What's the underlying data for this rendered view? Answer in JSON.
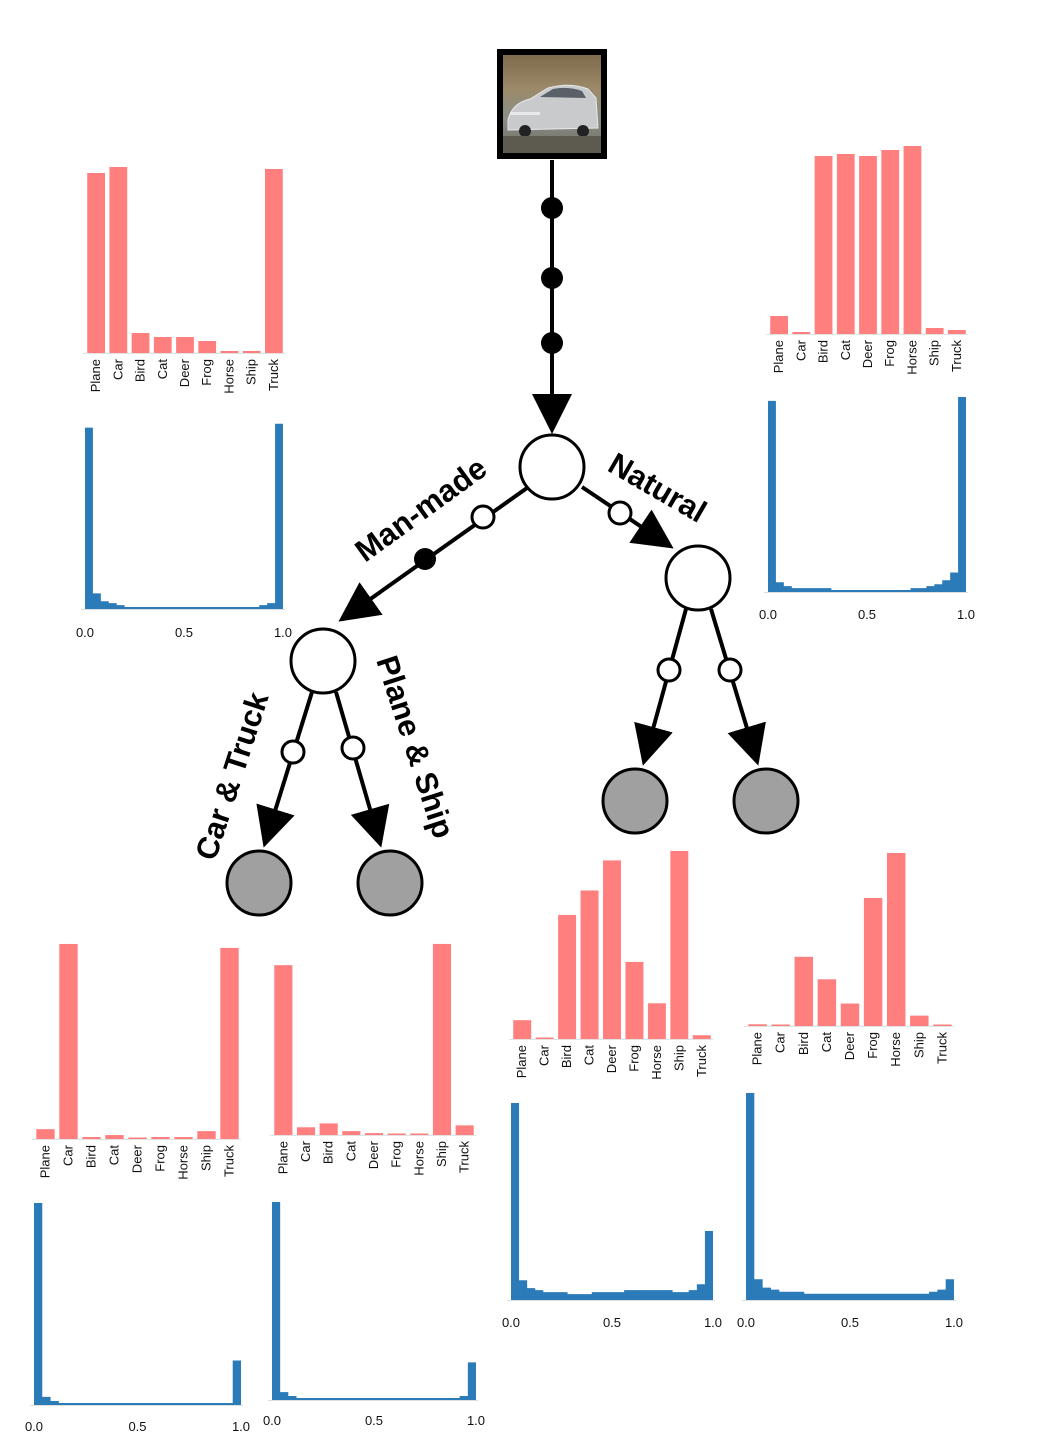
{
  "input_image": {
    "description_icon": "car-photo"
  },
  "branch_labels": {
    "left": "Man-made",
    "right": "Natural",
    "left_left": "Car & Truck",
    "left_right": "Plane & Ship"
  },
  "colors": {
    "class_bar": "#ff7f7f",
    "confidence_hist": "#2b7bb9",
    "leaf_node": "#a0a0a0",
    "internal_node": "#ffffff",
    "edge": "#000000"
  },
  "chart_data": [
    {
      "id": "top-left",
      "type": "bar",
      "categories": [
        "Plane",
        "Car",
        "Bird",
        "Cat",
        "Deer",
        "Frog",
        "Horse",
        "Ship",
        "Truck"
      ],
      "values": [
        0.9,
        0.93,
        0.1,
        0.08,
        0.08,
        0.06,
        0.01,
        0.01,
        0.92
      ],
      "hist": {
        "type": "histogram",
        "xticks": [
          "0.0",
          "0.5",
          "1.0"
        ],
        "values": [
          0.93,
          0.08,
          0.04,
          0.03,
          0.02,
          0.01,
          0.01,
          0.01,
          0.01,
          0.01,
          0.01,
          0.01,
          0.01,
          0.01,
          0.01,
          0.01,
          0.01,
          0.01,
          0.01,
          0.01,
          0.01,
          0.01,
          0.02,
          0.03,
          0.95
        ]
      }
    },
    {
      "id": "top-right",
      "type": "bar",
      "categories": [
        "Plane",
        "Car",
        "Bird",
        "Cat",
        "Deer",
        "Frog",
        "Horse",
        "Ship",
        "Truck"
      ],
      "values": [
        0.09,
        0.01,
        0.89,
        0.9,
        0.89,
        0.92,
        0.94,
        0.03,
        0.02
      ],
      "hist": {
        "type": "histogram",
        "xticks": [
          "0.0",
          "0.5",
          "1.0"
        ],
        "values": [
          0.98,
          0.05,
          0.03,
          0.02,
          0.02,
          0.02,
          0.02,
          0.02,
          0.01,
          0.01,
          0.01,
          0.01,
          0.01,
          0.01,
          0.01,
          0.01,
          0.01,
          0.01,
          0.02,
          0.02,
          0.03,
          0.04,
          0.06,
          0.1,
          1.0
        ]
      }
    },
    {
      "id": "car-truck",
      "type": "bar",
      "categories": [
        "Plane",
        "Car",
        "Bird",
        "Cat",
        "Deer",
        "Frog",
        "Horse",
        "Ship",
        "Truck"
      ],
      "values": [
        0.05,
        0.99,
        0.01,
        0.02,
        0.0,
        0.01,
        0.01,
        0.04,
        0.97
      ],
      "hist": {
        "type": "histogram",
        "xticks": [
          "0.0",
          "0.5",
          "1.0"
        ],
        "values": [
          1.0,
          0.04,
          0.02,
          0.01,
          0.01,
          0.01,
          0.01,
          0.01,
          0.01,
          0.01,
          0.01,
          0.01,
          0.01,
          0.01,
          0.01,
          0.01,
          0.01,
          0.01,
          0.01,
          0.01,
          0.01,
          0.01,
          0.01,
          0.01,
          0.22
        ]
      }
    },
    {
      "id": "plane-ship",
      "type": "bar",
      "categories": [
        "Plane",
        "Car",
        "Bird",
        "Cat",
        "Deer",
        "Frog",
        "Horse",
        "Ship",
        "Truck"
      ],
      "values": [
        0.88,
        0.04,
        0.06,
        0.02,
        0.01,
        0.0,
        0.0,
        0.99,
        0.05
      ],
      "hist": {
        "type": "histogram",
        "xticks": [
          "0.0",
          "0.5",
          "1.0"
        ],
        "values": [
          1.0,
          0.04,
          0.02,
          0.01,
          0.01,
          0.01,
          0.01,
          0.01,
          0.01,
          0.01,
          0.01,
          0.01,
          0.01,
          0.01,
          0.01,
          0.01,
          0.01,
          0.01,
          0.01,
          0.01,
          0.01,
          0.01,
          0.01,
          0.02,
          0.19
        ]
      }
    },
    {
      "id": "natural-left",
      "type": "bar",
      "categories": [
        "Plane",
        "Car",
        "Bird",
        "Cat",
        "Deer",
        "Frog",
        "Horse",
        "Ship",
        "Truck"
      ],
      "values": [
        0.1,
        0.0,
        0.66,
        0.79,
        0.95,
        0.41,
        0.19,
        1.0,
        0.02
      ],
      "hist": {
        "type": "histogram",
        "xticks": [
          "0.0",
          "0.5",
          "1.0"
        ],
        "values": [
          1.0,
          0.1,
          0.06,
          0.05,
          0.04,
          0.04,
          0.04,
          0.03,
          0.03,
          0.03,
          0.04,
          0.04,
          0.04,
          0.04,
          0.05,
          0.05,
          0.05,
          0.05,
          0.05,
          0.05,
          0.04,
          0.04,
          0.05,
          0.08,
          0.35
        ]
      }
    },
    {
      "id": "natural-right",
      "type": "bar",
      "categories": [
        "Plane",
        "Car",
        "Bird",
        "Cat",
        "Deer",
        "Frog",
        "Horse",
        "Ship",
        "Truck"
      ],
      "values": [
        0.01,
        0.0,
        0.4,
        0.27,
        0.13,
        0.74,
        1.0,
        0.06,
        0.0
      ],
      "hist": {
        "type": "histogram",
        "xticks": [
          "0.0",
          "0.5",
          "1.0"
        ],
        "values": [
          1.0,
          0.1,
          0.06,
          0.05,
          0.04,
          0.04,
          0.04,
          0.03,
          0.03,
          0.03,
          0.03,
          0.03,
          0.03,
          0.03,
          0.03,
          0.03,
          0.03,
          0.03,
          0.03,
          0.03,
          0.03,
          0.03,
          0.04,
          0.05,
          0.1
        ]
      }
    }
  ]
}
